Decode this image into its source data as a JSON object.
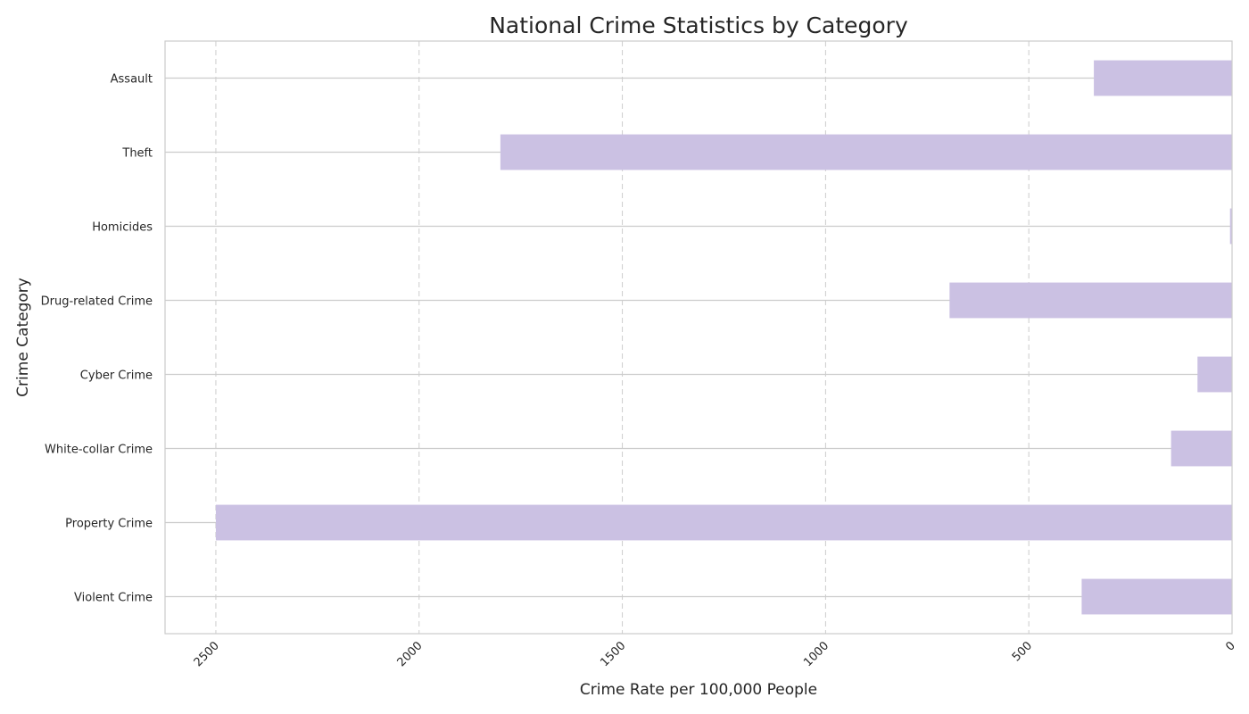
{
  "chart_data": {
    "type": "bar",
    "orientation": "horizontal",
    "title": "National Crime Statistics by Category",
    "xlabel": "Crime Rate per 100,000 People",
    "ylabel": "Crime Category",
    "categories": [
      "Assault",
      "Theft",
      "Homicides",
      "Drug-related Crime",
      "Cyber Crime",
      "White-collar Crime",
      "Property Crime",
      "Violent Crime"
    ],
    "values": [
      340,
      1800,
      5,
      695,
      85,
      150,
      2500,
      370
    ],
    "xlim": [
      2625,
      0
    ],
    "x_inverted": true,
    "xticks": [
      "2500",
      "2000",
      "1500",
      "1000",
      "500",
      "0"
    ],
    "xtick_values": [
      2500,
      2000,
      1500,
      1000,
      500,
      0
    ],
    "x_grid": true,
    "y_grid": true,
    "bar_color": "#cbc1e3",
    "grid_color": "#cccccc",
    "spine_color": "#cccccc"
  }
}
